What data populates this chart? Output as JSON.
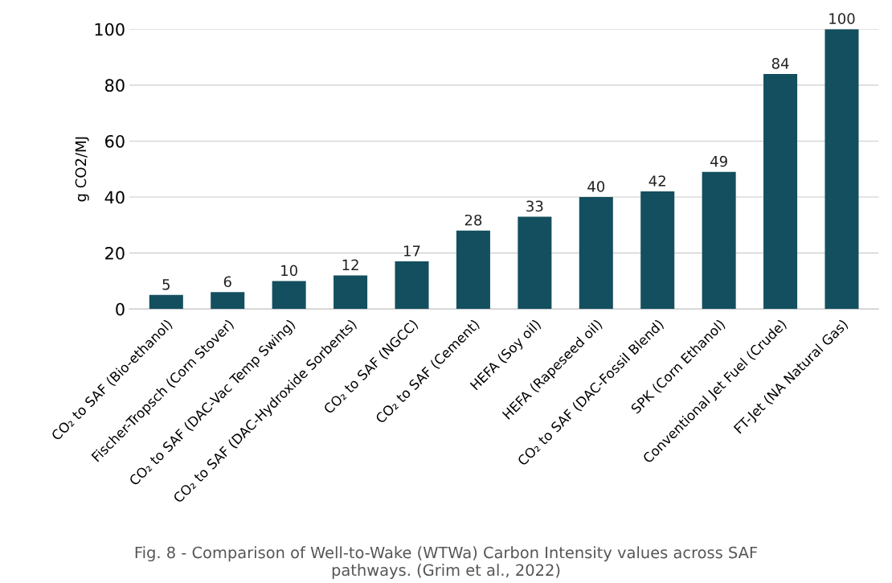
{
  "chart_data": {
    "type": "bar",
    "ylabel": "g CO2/MJ",
    "categories": [
      "CO₂ to SAF (Bio-ethanol)",
      "Fischer-Tropsch (Corn Stover)",
      "CO₂ to SAF (DAC-Vac Temp Swing)",
      "CO₂ to SAF (DAC-Hydroxide Sorbents)",
      "CO₂ to SAF (NGCC)",
      "CO₂ to SAF (Cement)",
      "HEFA (Soy oil)",
      "HEFA (Rapeseed oil)",
      "CO₂ to SAF (DAC-Fossil Blend)",
      "SPK (Corn Ethanol)",
      "Conventional Jet Fuel (Crude)",
      "FT-Jet (NA Natural Gas)"
    ],
    "values": [
      5,
      6,
      10,
      12,
      17,
      28,
      33,
      40,
      42,
      49,
      84,
      100
    ],
    "color": "#134f5f",
    "ylim": [
      0,
      100
    ],
    "yticks": [
      0,
      20,
      40,
      60,
      80,
      100
    ],
    "grid": "y",
    "data_labels": true,
    "annotations": [
      "Fig. 8 - Comparison of Well-to-Wake (WTWa) Carbon Intensity values across SAF pathways. (Grim et al., 2022)"
    ]
  }
}
